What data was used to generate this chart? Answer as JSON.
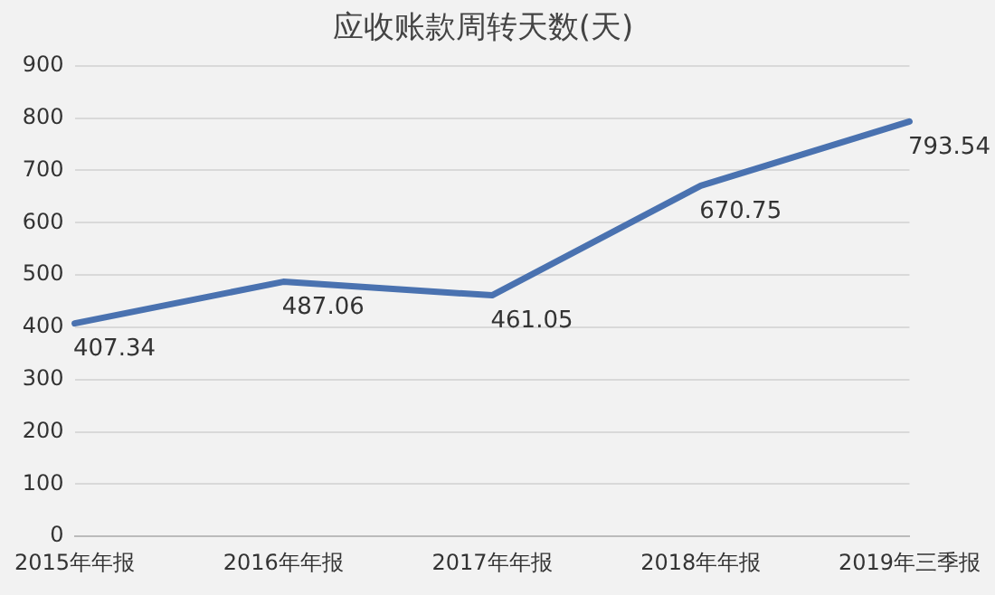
{
  "chart_data": {
    "type": "line",
    "title": "应收账款周转天数(天)",
    "categories": [
      "2015年年报",
      "2016年年报",
      "2017年年报",
      "2018年年报",
      "2019年三季报"
    ],
    "series": [
      {
        "color": "#4a72b0",
        "values": [
          407.34,
          487.06,
          461.05,
          670.75,
          793.54
        ]
      }
    ],
    "ylim": [
      0,
      900
    ],
    "yticks": [
      0,
      100,
      200,
      300,
      400,
      500,
      600,
      700,
      800,
      900
    ],
    "grid": "y",
    "data_labels": true,
    "legend": false,
    "marker": "none",
    "line_style": "solid"
  }
}
